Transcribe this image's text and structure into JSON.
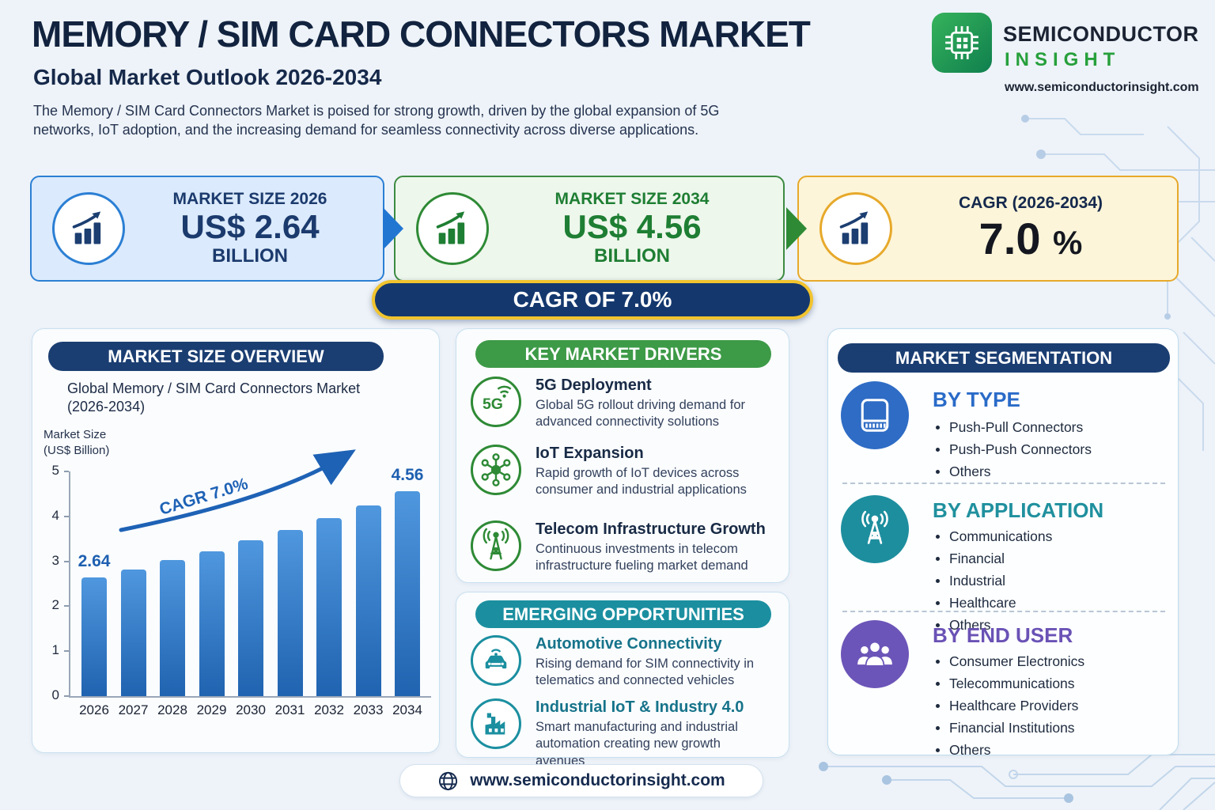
{
  "header": {
    "title": "MEMORY / SIM CARD CONNECTORS MARKET",
    "subtitle": "Global Market Outlook 2026-2034",
    "description": "The Memory / SIM Card Connectors Market is poised for strong growth, driven by the global expansion of 5G networks, IoT adoption, and the increasing demand for seamless connectivity across diverse applications."
  },
  "logo": {
    "brand_line1": "SEMICONDUCTOR",
    "brand_line2": "INSIGHT",
    "url": "www.semiconductorinsight.com"
  },
  "stats": [
    {
      "label": "MARKET SIZE 2026",
      "value": "US$ 2.64",
      "unit": "BILLION"
    },
    {
      "label": "MARKET SIZE 2034",
      "value": "US$ 4.56",
      "unit": "BILLION"
    },
    {
      "label": "CAGR (2026-2034)",
      "value": "7.0",
      "unit": "%"
    }
  ],
  "cagr_banner": "CAGR OF 7.0%",
  "overview": {
    "header": "MARKET SIZE OVERVIEW",
    "chart_title": "Global Memory / SIM Card Connectors Market (2026-2034)",
    "ylabel_display": "Market Size\n(US$ Billion)",
    "chart_data": {
      "type": "bar",
      "title": "Global Memory / SIM Card Connectors Market (2026-2034)",
      "categories": [
        "2026",
        "2027",
        "2028",
        "2029",
        "2030",
        "2031",
        "2032",
        "2033",
        "2034"
      ],
      "values": [
        2.64,
        2.82,
        3.02,
        3.23,
        3.46,
        3.7,
        3.96,
        4.24,
        4.56
      ],
      "ylabel": "Market Size (US$ Billion)",
      "xlabel": "",
      "ylim": [
        0,
        5
      ],
      "yticks": [
        0,
        1,
        2,
        3,
        4,
        5
      ],
      "grid": false,
      "annotations": {
        "first_point": "2.64",
        "last_point": "4.56",
        "trend": "CAGR 7.0%"
      },
      "bar_colors": [
        "#4f97de",
        "#2063b0"
      ]
    }
  },
  "drivers": {
    "header": "KEY MARKET DRIVERS",
    "items": [
      {
        "icon": "5g-icon",
        "title": "5G Deployment",
        "desc": "Global 5G rollout driving demand for advanced connectivity solutions"
      },
      {
        "icon": "iot-network-icon",
        "title": "IoT Expansion",
        "desc": "Rapid growth of IoT devices across consumer and industrial applications"
      },
      {
        "icon": "telecom-tower-icon",
        "title": "Telecom Infrastructure Growth",
        "desc": "Continuous investments in telecom infrastructure fueling market demand"
      }
    ]
  },
  "opportunities": {
    "header": "EMERGING OPPORTUNITIES",
    "items": [
      {
        "icon": "connected-car-icon",
        "title": "Automotive Connectivity",
        "desc": "Rising demand for SIM connectivity in telematics and connected vehicles"
      },
      {
        "icon": "factory-icon",
        "title": "Industrial IoT & Industry 4.0",
        "desc": "Smart manufacturing and industrial automation creating new growth avenues"
      }
    ]
  },
  "segmentation": {
    "header": "MARKET SEGMENTATION",
    "sections": [
      {
        "icon": "sim-card-icon",
        "title": "BY TYPE",
        "color": "#2a6bc8",
        "items": [
          "Push-Pull Connectors",
          "Push-Push Connectors",
          "Others"
        ]
      },
      {
        "icon": "antenna-icon",
        "title": "BY APPLICATION",
        "color": "#20909e",
        "items": [
          "Communications",
          "Financial",
          "Industrial",
          "Healthcare",
          "Others"
        ]
      },
      {
        "icon": "people-group-icon",
        "title": "BY END USER",
        "color": "#6a52b5",
        "items": [
          "Consumer Electronics",
          "Telecommunications",
          "Healthcare Providers",
          "Financial Institutions",
          "Others"
        ]
      }
    ]
  },
  "footer": {
    "url": "www.semiconductorinsight.com"
  },
  "colors": {
    "background": "#eef3f9",
    "navy": "#1b3e72",
    "blue": "#2176d2",
    "green": "#3d9a47",
    "teal": "#1b8fa0",
    "purple": "#6c55b8",
    "gold": "#e7a92b",
    "bar_top": "#4f97de",
    "bar_bottom": "#2063b0"
  }
}
